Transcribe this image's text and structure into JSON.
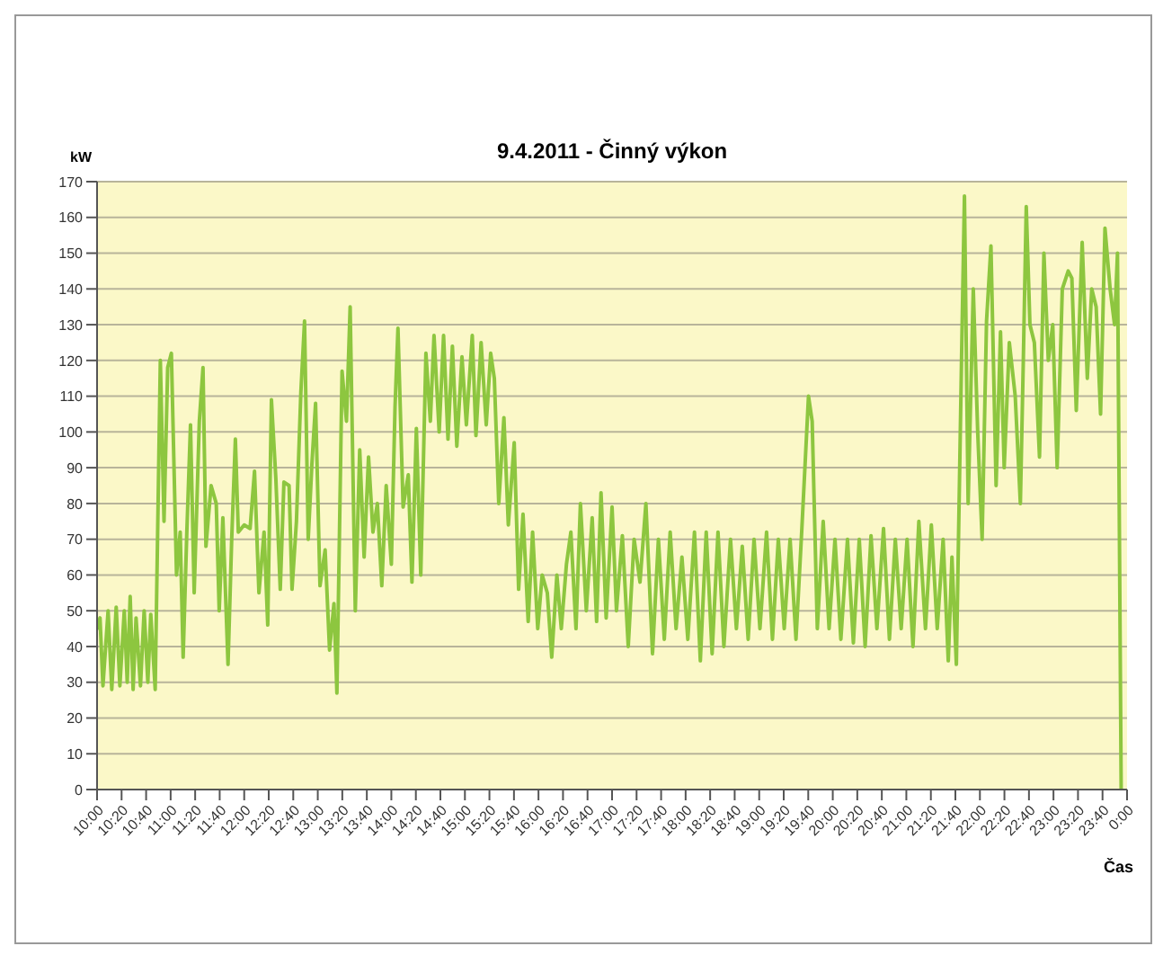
{
  "chart_data": {
    "type": "line",
    "title": "9.4.2011 - Činný výkon",
    "xlabel": "Čas",
    "ylabel": "kW",
    "x": [
      10.0,
      10.04,
      10.08,
      10.15,
      10.2,
      10.26,
      10.31,
      10.37,
      10.41,
      10.45,
      10.49,
      10.53,
      10.59,
      10.64,
      10.69,
      10.73,
      10.79,
      10.86,
      10.91,
      10.96,
      11.01,
      11.08,
      11.13,
      11.17,
      11.22,
      11.27,
      11.32,
      11.39,
      11.44,
      11.48,
      11.55,
      11.62,
      11.66,
      11.71,
      11.78,
      11.83,
      11.88,
      11.92,
      12.0,
      12.08,
      12.14,
      12.2,
      12.27,
      12.32,
      12.37,
      12.43,
      12.49,
      12.54,
      12.61,
      12.65,
      12.71,
      12.77,
      12.82,
      12.87,
      12.92,
      12.97,
      13.03,
      13.1,
      13.16,
      13.22,
      13.26,
      13.33,
      13.39,
      13.44,
      13.51,
      13.57,
      13.63,
      13.69,
      13.75,
      13.81,
      13.87,
      13.93,
      14.0,
      14.05,
      14.09,
      14.16,
      14.23,
      14.28,
      14.34,
      14.4,
      14.47,
      14.53,
      14.58,
      14.65,
      14.71,
      14.77,
      14.83,
      14.89,
      14.96,
      15.02,
      15.1,
      15.15,
      15.22,
      15.29,
      15.35,
      15.4,
      15.46,
      15.53,
      15.59,
      15.67,
      15.73,
      15.79,
      15.86,
      15.92,
      15.99,
      16.05,
      16.12,
      16.18,
      16.25,
      16.31,
      16.38,
      16.44,
      16.51,
      16.57,
      16.65,
      16.73,
      16.79,
      16.85,
      16.92,
      17.0,
      17.06,
      17.14,
      17.22,
      17.3,
      17.38,
      17.46,
      17.55,
      17.63,
      17.71,
      17.79,
      17.87,
      17.95,
      18.03,
      18.12,
      18.2,
      18.28,
      18.36,
      18.44,
      18.52,
      18.61,
      18.69,
      18.77,
      18.85,
      18.93,
      19.01,
      19.1,
      19.18,
      19.26,
      19.34,
      19.42,
      19.5,
      19.58,
      19.67,
      19.72,
      19.79,
      19.87,
      19.95,
      20.03,
      20.11,
      20.2,
      20.28,
      20.36,
      20.44,
      20.52,
      20.6,
      20.69,
      20.77,
      20.85,
      20.93,
      21.01,
      21.09,
      21.17,
      21.26,
      21.34,
      21.42,
      21.5,
      21.57,
      21.62,
      21.68,
      21.75,
      21.79,
      21.84,
      21.91,
      21.97,
      22.03,
      22.09,
      22.15,
      22.22,
      22.28,
      22.33,
      22.4,
      22.48,
      22.55,
      22.59,
      22.63,
      22.68,
      22.74,
      22.81,
      22.87,
      22.93,
      22.99,
      23.05,
      23.12,
      23.2,
      23.25,
      23.31,
      23.39,
      23.46,
      23.52,
      23.58,
      23.64,
      23.7,
      23.77,
      23.83,
      23.87,
      23.92
    ],
    "series": [
      {
        "color": "#8dc63f",
        "values": [
          45,
          48,
          29,
          50,
          28,
          51,
          29,
          50,
          30,
          54,
          28,
          48,
          29,
          50,
          30,
          49,
          28,
          120,
          75,
          118,
          122,
          60,
          72,
          37,
          72,
          102,
          55,
          103,
          118,
          68,
          85,
          80,
          50,
          76,
          35,
          70,
          98,
          72,
          74,
          73,
          89,
          55,
          72,
          46,
          109,
          87,
          56,
          86,
          85,
          56,
          75,
          111,
          131,
          70,
          91,
          108,
          57,
          67,
          39,
          52,
          27,
          117,
          103,
          135,
          50,
          95,
          65,
          93,
          72,
          80,
          57,
          85,
          63,
          107,
          129,
          79,
          88,
          58,
          101,
          60,
          122,
          103,
          127,
          100,
          127,
          98,
          124,
          96,
          121,
          102,
          127,
          99,
          125,
          102,
          122,
          115,
          80,
          104,
          74,
          97,
          56,
          77,
          47,
          72,
          45,
          60,
          55,
          37,
          60,
          45,
          63,
          72,
          45,
          80,
          50,
          76,
          47,
          83,
          48,
          79,
          50,
          71,
          40,
          70,
          58,
          80,
          38,
          70,
          42,
          72,
          45,
          65,
          42,
          72,
          36,
          72,
          38,
          72,
          40,
          70,
          45,
          68,
          42,
          70,
          45,
          72,
          42,
          70,
          45,
          70,
          42,
          73,
          110,
          103,
          45,
          75,
          45,
          70,
          42,
          70,
          41,
          70,
          40,
          71,
          45,
          73,
          42,
          70,
          45,
          70,
          40,
          75,
          45,
          74,
          45,
          70,
          36,
          65,
          35,
          120,
          166,
          80,
          140,
          100,
          70,
          131,
          152,
          85,
          128,
          90,
          125,
          110,
          80,
          120,
          163,
          130,
          125,
          93,
          150,
          120,
          130,
          90,
          140,
          145,
          143,
          106,
          153,
          115,
          140,
          135,
          105,
          157,
          140,
          130,
          150,
          0
        ]
      }
    ],
    "xlim": [
      10,
      24
    ],
    "xticks": [
      {
        "value": 10,
        "label": "10:00"
      },
      {
        "value": 10.3333,
        "label": "10:20"
      },
      {
        "value": 10.6667,
        "label": "10:40"
      },
      {
        "value": 11,
        "label": "11:00"
      },
      {
        "value": 11.3333,
        "label": "11:20"
      },
      {
        "value": 11.6667,
        "label": "11:40"
      },
      {
        "value": 12,
        "label": "12:00"
      },
      {
        "value": 12.3333,
        "label": "12:20"
      },
      {
        "value": 12.6667,
        "label": "12:40"
      },
      {
        "value": 13,
        "label": "13:00"
      },
      {
        "value": 13.3333,
        "label": "13:20"
      },
      {
        "value": 13.6667,
        "label": "13:40"
      },
      {
        "value": 14,
        "label": "14:00"
      },
      {
        "value": 14.3333,
        "label": "14:20"
      },
      {
        "value": 14.6667,
        "label": "14:40"
      },
      {
        "value": 15,
        "label": "15:00"
      },
      {
        "value": 15.3333,
        "label": "15:20"
      },
      {
        "value": 15.6667,
        "label": "15:40"
      },
      {
        "value": 16,
        "label": "16:00"
      },
      {
        "value": 16.3333,
        "label": "16:20"
      },
      {
        "value": 16.6667,
        "label": "16:40"
      },
      {
        "value": 17,
        "label": "17:00"
      },
      {
        "value": 17.3333,
        "label": "17:20"
      },
      {
        "value": 17.6667,
        "label": "17:40"
      },
      {
        "value": 18,
        "label": "18:00"
      },
      {
        "value": 18.3333,
        "label": "18:20"
      },
      {
        "value": 18.6667,
        "label": "18:40"
      },
      {
        "value": 19,
        "label": "19:00"
      },
      {
        "value": 19.3333,
        "label": "19:20"
      },
      {
        "value": 19.6667,
        "label": "19:40"
      },
      {
        "value": 20,
        "label": "20:00"
      },
      {
        "value": 20.3333,
        "label": "20:20"
      },
      {
        "value": 20.6667,
        "label": "20:40"
      },
      {
        "value": 21,
        "label": "21:00"
      },
      {
        "value": 21.3333,
        "label": "21:20"
      },
      {
        "value": 21.6667,
        "label": "21:40"
      },
      {
        "value": 22,
        "label": "22:00"
      },
      {
        "value": 22.3333,
        "label": "22:20"
      },
      {
        "value": 22.6667,
        "label": "22:40"
      },
      {
        "value": 23,
        "label": "23:00"
      },
      {
        "value": 23.3333,
        "label": "23:20"
      },
      {
        "value": 23.6667,
        "label": "23:40"
      },
      {
        "value": 24,
        "label": "0:00"
      }
    ],
    "ylim": [
      0,
      170
    ],
    "yticks": [
      0,
      10,
      20,
      30,
      40,
      50,
      60,
      70,
      80,
      90,
      100,
      110,
      120,
      130,
      140,
      150,
      160,
      170
    ],
    "grid": "y",
    "marker": "none",
    "line_style": "solid"
  }
}
